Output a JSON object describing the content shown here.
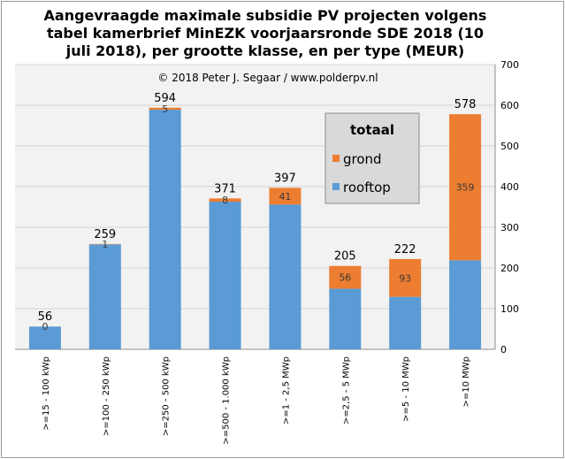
{
  "title_lines": [
    "Aangevraagde maximale subsidie  PV projecten volgens",
    "tabel kamerbrief MinEZK voorjaarsronde SDE 2018 (10",
    "juli 2018), per grootte klasse, en per type (MEUR)"
  ],
  "chart_data": {
    "type": "bar",
    "stacked": true,
    "copyright": "© 2018  Peter J. Segaar / www.polderpv.nl",
    "categories": [
      ">=15 - 100 kWp",
      ">=100 - 250 kWp",
      ">=250 - 500 kWp",
      ">=500 - 1.000 kWp",
      ">=1 - 2,5 MWp",
      ">=2,5 - 5 MWp",
      ">=5 - 10 MWp",
      ">=10 MWp"
    ],
    "series": [
      {
        "name": "rooftop",
        "color": "#5b9bd5",
        "values": [
          56,
          258,
          589,
          363,
          356,
          149,
          129,
          219
        ],
        "labels": [
          null,
          null,
          null,
          null,
          null,
          null,
          null,
          null
        ]
      },
      {
        "name": "grond",
        "color": "#ed7d31",
        "values": [
          0,
          1,
          5,
          8,
          41,
          56,
          93,
          359
        ],
        "labels": [
          "0",
          "1",
          "5",
          "8",
          "41",
          "56",
          "93",
          "359"
        ]
      }
    ],
    "totals": [
      "56",
      "259",
      "594",
      "371",
      "397",
      "205",
      "222",
      "578"
    ],
    "ylim": [
      0,
      700
    ],
    "yticks": [
      0,
      100,
      200,
      300,
      400,
      500,
      600,
      700
    ],
    "y_axis_side": "right",
    "grid": true,
    "legend": {
      "title": "totaal",
      "position": "top-right",
      "entries": [
        "grond",
        "rooftop"
      ]
    }
  }
}
